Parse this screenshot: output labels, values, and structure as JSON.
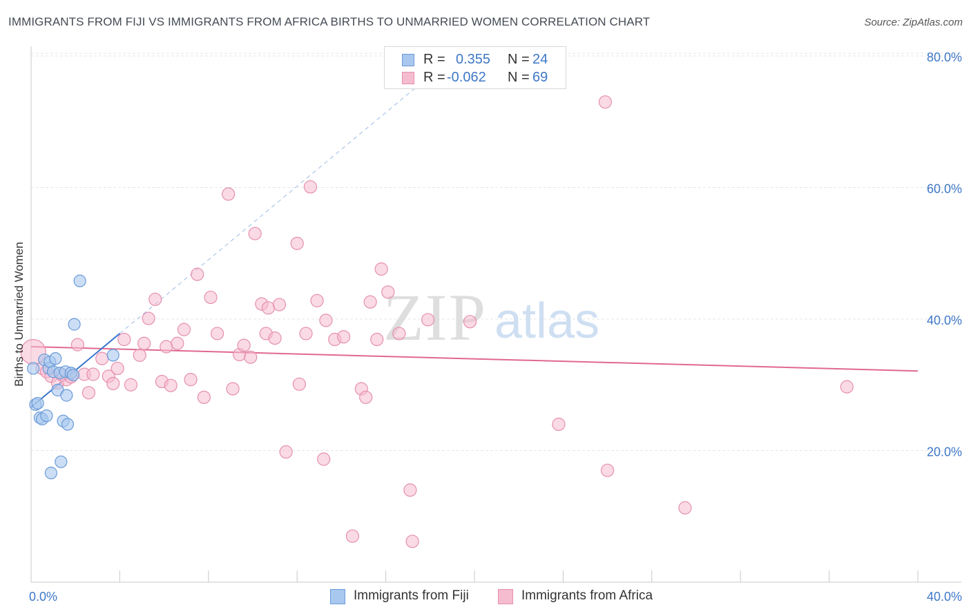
{
  "header": {
    "title": "IMMIGRANTS FROM FIJI VS IMMIGRANTS FROM AFRICA BIRTHS TO UNMARRIED WOMEN CORRELATION CHART",
    "source": "Source: ZipAtlas.com"
  },
  "legend": {
    "r_label": "R =",
    "n_label": "N =",
    "fiji": {
      "r": "0.355",
      "n": "24"
    },
    "africa": {
      "r": "-0.062",
      "n": "69"
    }
  },
  "watermark": {
    "zip": "ZIP",
    "atlas": "atlas"
  },
  "colors": {
    "fiji_fill": "#a9c8ef",
    "fiji_stroke": "#6a9ad8",
    "fiji_line": "#3a74cc",
    "africa_fill": "#f5bcd0",
    "africa_stroke": "#e58fae",
    "africa_line": "#e06890",
    "axis_text": "#3e77c7",
    "grid": "#e5e5e5"
  },
  "chart_data": {
    "type": "scatter",
    "title": "IMMIGRANTS FROM FIJI VS IMMIGRANTS FROM AFRICA BIRTHS TO UNMARRIED WOMEN CORRELATION CHART",
    "xlabel": "",
    "ylabel": "Births to Unmarried Women",
    "xlim": [
      0,
      40
    ],
    "ylim": [
      0,
      84
    ],
    "x_tick_labels": {
      "min": "0.0%",
      "max": "40.0%"
    },
    "y_ticks": [
      20,
      40,
      60,
      80
    ],
    "y_tick_labels": [
      "20.0%",
      "40.0%",
      "60.0%",
      "80.0%"
    ],
    "grid": true,
    "legend_position": "top-center",
    "series": [
      {
        "name": "Immigrants from Fiji",
        "points": [
          [
            0.1,
            32.5
          ],
          [
            0.2,
            27.0
          ],
          [
            0.3,
            27.2
          ],
          [
            0.4,
            25.0
          ],
          [
            0.5,
            24.8
          ],
          [
            0.6,
            33.8
          ],
          [
            0.7,
            25.3
          ],
          [
            0.8,
            32.5
          ],
          [
            0.85,
            33.5
          ],
          [
            0.9,
            16.6
          ],
          [
            1.0,
            32.0
          ],
          [
            1.1,
            34.0
          ],
          [
            1.2,
            29.2
          ],
          [
            1.3,
            31.8
          ],
          [
            1.35,
            18.3
          ],
          [
            1.45,
            24.5
          ],
          [
            1.55,
            32.0
          ],
          [
            1.6,
            28.4
          ],
          [
            1.65,
            24.0
          ],
          [
            1.8,
            31.8
          ],
          [
            1.9,
            31.5
          ],
          [
            1.95,
            39.2
          ],
          [
            2.2,
            45.8
          ],
          [
            3.7,
            34.5
          ]
        ],
        "trendline": {
          "x": [
            0,
            4.0
          ],
          "y": [
            26.6,
            37.8
          ]
        },
        "trendline_extension": {
          "x": [
            4.0,
            18.0
          ],
          "y": [
            37.8,
            77.0
          ]
        }
      },
      {
        "name": "Immigrants from Africa",
        "points": [
          [
            0.1,
            35.0
          ],
          [
            0.5,
            32.5
          ],
          [
            0.7,
            32.0
          ],
          [
            0.9,
            31.3
          ],
          [
            1.2,
            30.3
          ],
          [
            1.4,
            31.5
          ],
          [
            1.6,
            30.8
          ],
          [
            1.8,
            31.2
          ],
          [
            2.1,
            36.1
          ],
          [
            2.4,
            31.6
          ],
          [
            2.6,
            28.8
          ],
          [
            2.8,
            31.6
          ],
          [
            3.2,
            34.0
          ],
          [
            3.5,
            31.3
          ],
          [
            3.7,
            30.2
          ],
          [
            3.9,
            32.5
          ],
          [
            4.2,
            36.9
          ],
          [
            4.5,
            30.0
          ],
          [
            4.9,
            34.5
          ],
          [
            5.1,
            36.3
          ],
          [
            5.3,
            40.1
          ],
          [
            5.6,
            43.0
          ],
          [
            5.9,
            30.5
          ],
          [
            6.1,
            35.8
          ],
          [
            6.3,
            29.9
          ],
          [
            6.6,
            36.3
          ],
          [
            6.9,
            38.4
          ],
          [
            7.2,
            30.8
          ],
          [
            7.5,
            46.8
          ],
          [
            7.8,
            28.1
          ],
          [
            8.1,
            43.3
          ],
          [
            8.4,
            37.8
          ],
          [
            8.9,
            59.0
          ],
          [
            9.1,
            29.4
          ],
          [
            9.4,
            34.6
          ],
          [
            9.6,
            36.0
          ],
          [
            9.9,
            34.2
          ],
          [
            10.1,
            53.0
          ],
          [
            10.4,
            42.3
          ],
          [
            10.7,
            41.7
          ],
          [
            10.6,
            37.8
          ],
          [
            11.0,
            37.1
          ],
          [
            11.2,
            42.2
          ],
          [
            11.5,
            19.8
          ],
          [
            12.0,
            51.5
          ],
          [
            12.1,
            30.1
          ],
          [
            12.4,
            37.8
          ],
          [
            12.6,
            60.1
          ],
          [
            12.9,
            42.8
          ],
          [
            13.2,
            18.7
          ],
          [
            13.3,
            39.8
          ],
          [
            13.7,
            36.9
          ],
          [
            14.1,
            37.3
          ],
          [
            14.5,
            7.0
          ],
          [
            14.9,
            29.4
          ],
          [
            15.1,
            28.1
          ],
          [
            15.3,
            42.6
          ],
          [
            15.6,
            36.9
          ],
          [
            15.8,
            47.6
          ],
          [
            16.1,
            44.1
          ],
          [
            16.6,
            37.8
          ],
          [
            17.1,
            14.0
          ],
          [
            17.2,
            6.2
          ],
          [
            17.9,
            39.9
          ],
          [
            19.8,
            39.6
          ],
          [
            23.8,
            24.0
          ],
          [
            25.9,
            73.0
          ],
          [
            26.0,
            17.0
          ],
          [
            29.5,
            11.3
          ],
          [
            36.8,
            29.7
          ]
        ],
        "trendline": {
          "x": [
            0,
            40
          ],
          "y": [
            35.8,
            32.1
          ]
        }
      }
    ]
  },
  "bottom_legend": {
    "fiji_label": "Immigrants from Fiji",
    "africa_label": "Immigrants from Africa"
  }
}
